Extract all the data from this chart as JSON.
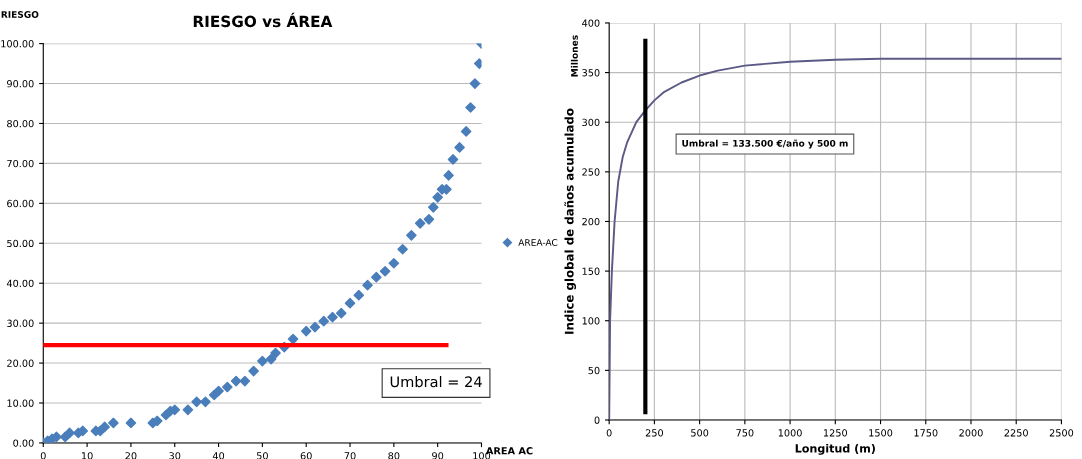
{
  "chart_data": [
    {
      "type": "scatter",
      "title": "RIESGO vs ÁREA",
      "xlabel": "AREA AC",
      "ylabel": "RIESGO",
      "x": [
        0,
        1,
        2,
        3,
        5,
        6,
        8,
        9,
        12,
        13,
        14,
        16,
        20,
        25,
        26,
        28,
        29,
        30,
        33,
        35,
        37,
        39,
        40,
        42,
        44,
        46,
        48,
        50,
        52,
        53,
        55,
        57,
        60,
        62,
        64,
        66,
        68,
        70,
        72,
        74,
        76,
        78,
        80,
        82,
        84,
        86,
        88,
        89,
        90,
        91,
        92,
        92.5,
        93.5,
        95,
        96.5,
        97.5,
        98.5,
        99.5,
        100
      ],
      "series": [
        {
          "name": "AREA-AC",
          "color": "#4a7ebb",
          "values": [
            0,
            0.5,
            1,
            1.5,
            1.5,
            2.5,
            2.5,
            3,
            3,
            3,
            4,
            5,
            5,
            5,
            5.5,
            7,
            8,
            8.3,
            8.3,
            10.3,
            10.3,
            12,
            13,
            14,
            15.5,
            15.5,
            18,
            20.5,
            21,
            22.5,
            24,
            26,
            28,
            29,
            30.5,
            31.5,
            32.5,
            35,
            37,
            39.5,
            41.5,
            43,
            45,
            48.5,
            52,
            55,
            56,
            59,
            61.5,
            63.5,
            63.5,
            67,
            71,
            74,
            78,
            84,
            90,
            95,
            100
          ]
        }
      ],
      "marker": "diamond",
      "xlim": [
        0,
        100
      ],
      "xticks": [
        0,
        10,
        20,
        30,
        40,
        50,
        60,
        70,
        80,
        90,
        100
      ],
      "ylim": [
        0,
        100
      ],
      "yticks": [
        {
          "value": 0,
          "label": "0.00"
        },
        {
          "value": 10,
          "label": "10.00"
        },
        {
          "value": 20,
          "label": "20.00"
        },
        {
          "value": 30,
          "label": "30.00"
        },
        {
          "value": 40,
          "label": "40.00"
        },
        {
          "value": 50,
          "label": "50.00"
        },
        {
          "value": 60,
          "label": "60.00"
        },
        {
          "value": 70,
          "label": "70.00"
        },
        {
          "value": 80,
          "label": "80.00"
        },
        {
          "value": 90,
          "label": "90.00"
        },
        {
          "value": 100,
          "label": "100.00"
        }
      ],
      "grid": "y",
      "legend": "right",
      "ref_lines": [
        {
          "axis": "y",
          "value": 24.5,
          "color": "#ff0000"
        }
      ],
      "annotations": [
        "Umbral = 24"
      ]
    },
    {
      "type": "line",
      "xlabel": "Longitud (m)",
      "ylabel": "Indice global de daños acumulado",
      "x": [
        0,
        5,
        15,
        30,
        50,
        75,
        100,
        150,
        200,
        250,
        300,
        400,
        500,
        600,
        750,
        1000,
        1250,
        1500,
        2000,
        2500
      ],
      "series": [
        {
          "color": "#5c5a86",
          "values": [
            0,
            100,
            150,
            200,
            240,
            265,
            280,
            300,
            312,
            322,
            330,
            340,
            347,
            352,
            357,
            361,
            363,
            364,
            364,
            364
          ]
        }
      ],
      "xlim": [
        0,
        2500
      ],
      "xticks": [
        0,
        250,
        500,
        750,
        1000,
        1250,
        1500,
        1750,
        2000,
        2250,
        2500
      ],
      "ylim": [
        0,
        400
      ],
      "yticks": [
        0,
        50,
        100,
        150,
        200,
        250,
        300,
        350,
        400
      ],
      "grid": true,
      "ref_lines": [
        {
          "axis": "x",
          "value": 200,
          "color": "#000000"
        }
      ],
      "annotations": [
        "Millones",
        "Umbral = 133.500 €/año y 500 m"
      ]
    }
  ]
}
